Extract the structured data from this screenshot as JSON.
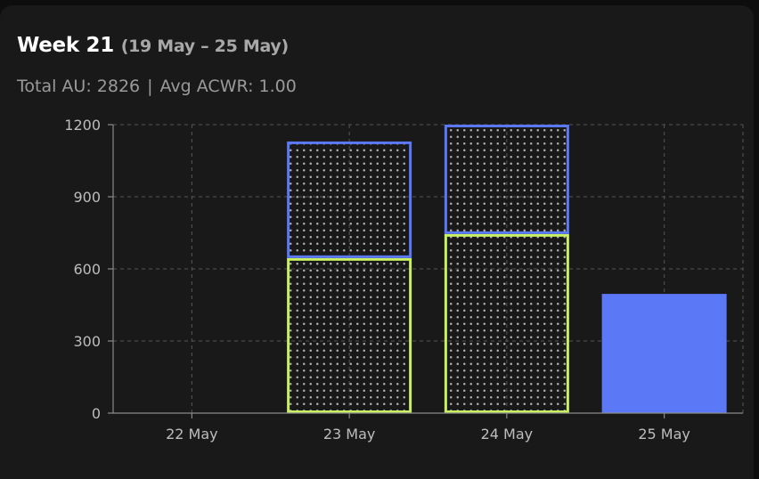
{
  "header": {
    "week": "Week 21",
    "range": "(19 May – 25 May)",
    "total_label": "Total AU:",
    "total_value": "2826",
    "separator": "|",
    "acwr_label": "Avg ACWR:",
    "acwr_value": "1.00"
  },
  "colors": {
    "background": "#191919",
    "grid": "#555555",
    "green": "#c8f060",
    "blue": "#5b78f6",
    "dots": "#b0b0b0"
  },
  "chart_data": {
    "type": "bar",
    "stacked": true,
    "categories": [
      "22 May",
      "23 May",
      "24 May",
      "25 May"
    ],
    "series": [
      {
        "name": "green-outlined-dotted",
        "values": [
          0,
          645,
          745,
          0
        ]
      },
      {
        "name": "blue-outlined-dotted",
        "values": [
          0,
          485,
          455,
          0
        ]
      },
      {
        "name": "blue-solid",
        "values": [
          0,
          0,
          0,
          496
        ]
      }
    ],
    "ylim": [
      0,
      1200
    ],
    "yticks": [
      0,
      300,
      600,
      900,
      1200
    ],
    "title": "Week 21 (19 May – 25 May)",
    "xlabel": "",
    "ylabel": "",
    "grid": true
  }
}
